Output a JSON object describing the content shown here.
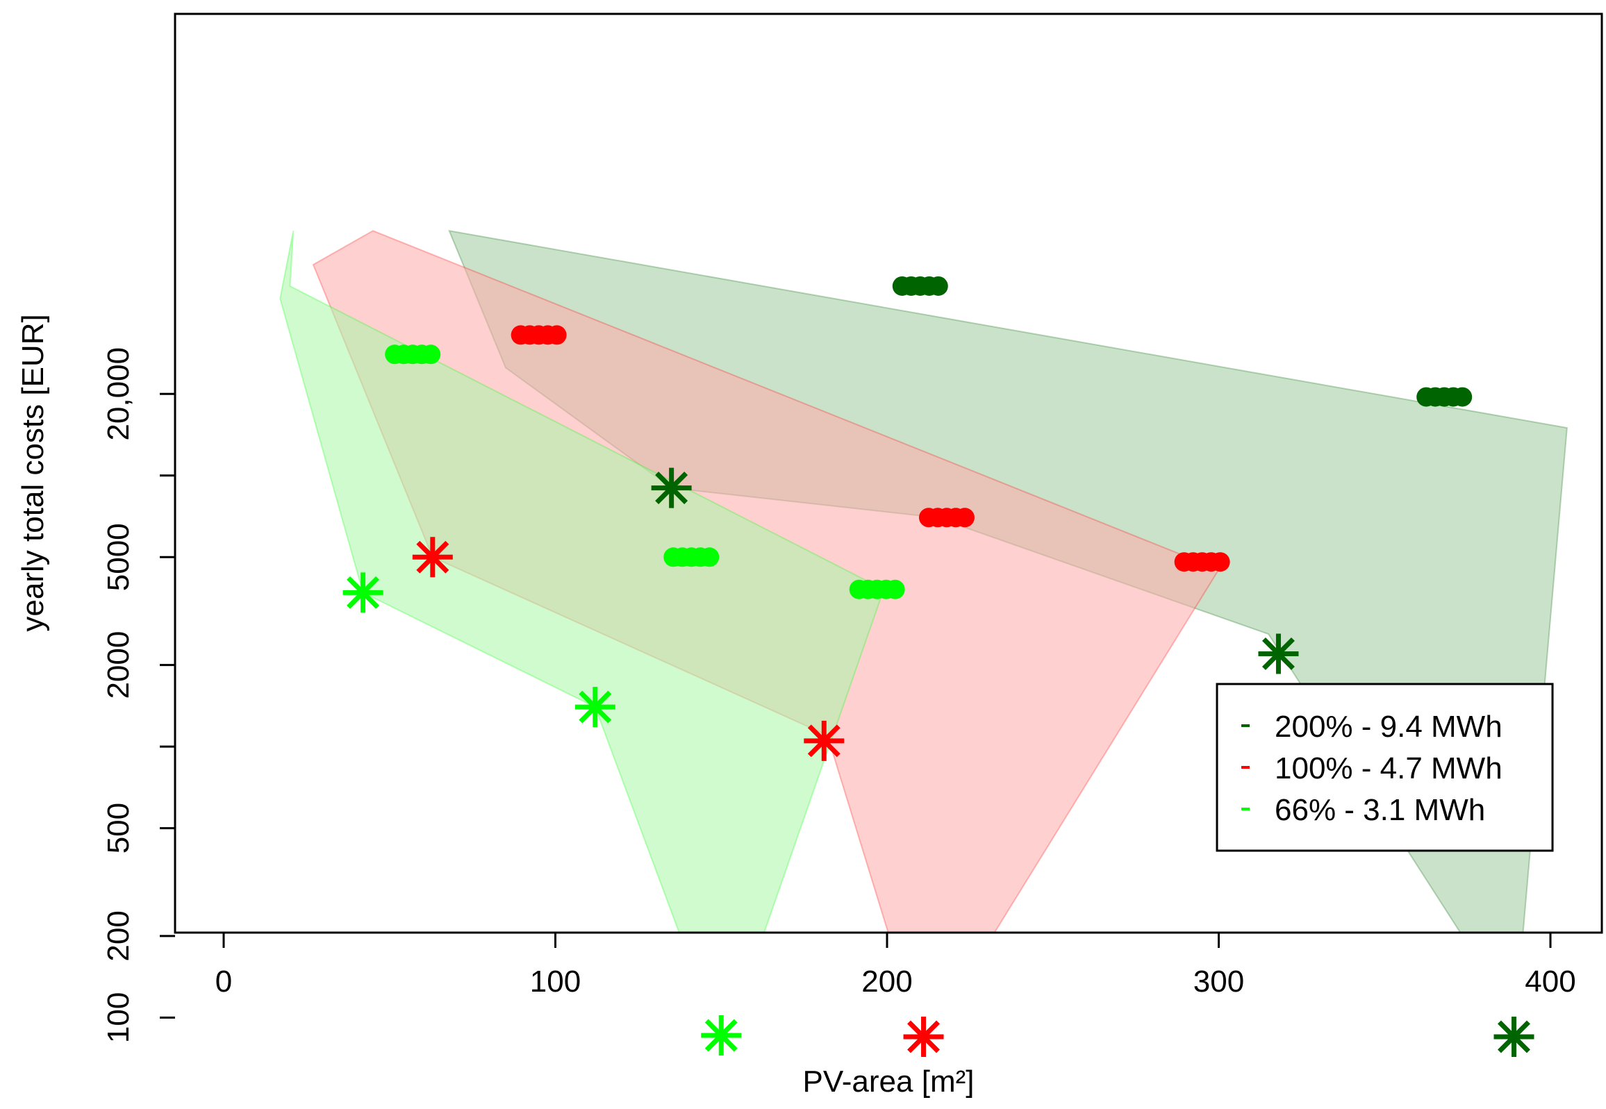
{
  "chart_data": {
    "type": "scatter",
    "title": "",
    "xlabel": "PV-area [m²]",
    "ylabel": "yearly total costs [EUR]",
    "x_ticks": [
      0,
      100,
      200,
      300,
      400
    ],
    "y_ticks": [
      100,
      200,
      500,
      2000,
      5000,
      20000
    ],
    "y_tick_labels": [
      "100",
      "200",
      "500",
      "2000",
      "5000",
      "20,000"
    ],
    "xlim": [
      -15,
      415
    ],
    "y_scale": "log",
    "ylim": [
      80,
      80000
    ],
    "grid": false,
    "legend_position": "bottom-right",
    "series": [
      {
        "name": "200% - 9.4 MWh",
        "color": "#006400",
        "fill": "#9fca9f",
        "region": [
          [
            68,
            80000
          ],
          [
            405,
            15000
          ],
          [
            389,
            85
          ],
          [
            393,
            85
          ],
          [
            315,
            2600
          ],
          [
            215,
            7000
          ],
          [
            135,
            9000
          ],
          [
            85,
            25000
          ]
        ],
        "circles": [
          [
            210,
            50000
          ],
          [
            368,
            19500
          ]
        ],
        "stars": [
          [
            135,
            9000
          ],
          [
            318,
            2200
          ],
          [
            389,
            85
          ]
        ]
      },
      {
        "name": "100% - 4.7 MWh",
        "color": "#ff0000",
        "fill": "#ffaaaa",
        "region": [
          [
            45,
            80000
          ],
          [
            300,
            4500
          ],
          [
            213,
            85
          ],
          [
            210,
            85
          ],
          [
            182,
            1100
          ],
          [
            63,
            5000
          ],
          [
            27,
            60000
          ]
        ],
        "circles": [
          [
            95,
            33000
          ],
          [
            218,
            7000
          ],
          [
            295,
            4800
          ]
        ],
        "stars": [
          [
            63,
            5000
          ],
          [
            181,
            1050
          ],
          [
            211,
            85
          ]
        ]
      },
      {
        "name": "66% - 3.1 MWh",
        "color": "#00ff00",
        "fill": "#a8f7a8",
        "region": [
          [
            21,
            80000
          ],
          [
            20,
            50000
          ],
          [
            199,
            3800
          ],
          [
            152,
            85
          ],
          [
            149,
            85
          ],
          [
            112,
            1400
          ],
          [
            42,
            3700
          ],
          [
            17,
            45000
          ]
        ],
        "circles": [
          [
            57,
            28000
          ],
          [
            141,
            5000
          ],
          [
            197,
            3800
          ]
        ],
        "stars": [
          [
            42,
            3700
          ],
          [
            112,
            1400
          ],
          [
            150,
            86
          ]
        ]
      }
    ]
  }
}
